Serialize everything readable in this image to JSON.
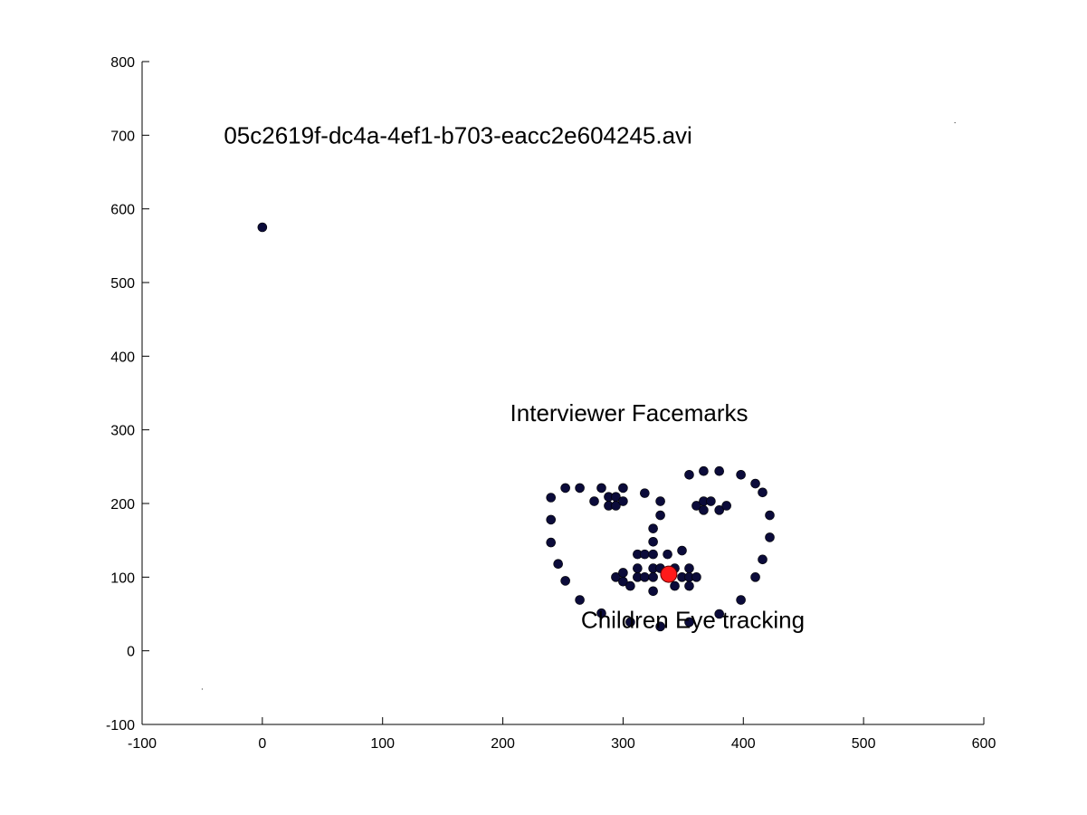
{
  "chart_data": {
    "type": "scatter",
    "title": "",
    "xlabel": "",
    "ylabel": "",
    "xlim": [
      -100,
      600
    ],
    "ylim": [
      -100,
      800
    ],
    "xticks": [
      -100,
      0,
      100,
      200,
      300,
      400,
      500,
      600
    ],
    "yticks": [
      -100,
      0,
      100,
      200,
      300,
      400,
      500,
      600,
      700,
      800
    ],
    "xtick_labels": [
      "-100",
      "0",
      "100",
      "200",
      "300",
      "400",
      "500",
      "600"
    ],
    "ytick_labels": [
      "-100",
      "0",
      "100",
      "200",
      "300",
      "400",
      "500",
      "600",
      "700",
      "800"
    ],
    "grid": false,
    "box": "left-bottom",
    "annotations": {
      "video": {
        "text": "05c2619f-dc4a-4ef1-b703-eacc2e604245.avi",
        "x": -32,
        "y": 700
      },
      "facemarks": {
        "text": "Interviewer Facemarks",
        "x": 206,
        "y": 323
      },
      "eyetracking": {
        "text": "Children Eye tracking",
        "x": 265,
        "y": 42
      }
    },
    "series": [
      {
        "color": "#0b0b3a",
        "points": [
          [
            0,
            575
          ],
          [
            240,
            208
          ],
          [
            240,
            178
          ],
          [
            240,
            147
          ],
          [
            246,
            118
          ],
          [
            252,
            95
          ],
          [
            264,
            69
          ],
          [
            282,
            51
          ],
          [
            306,
            39
          ],
          [
            331,
            33
          ],
          [
            355,
            39
          ],
          [
            380,
            50
          ],
          [
            398,
            69
          ],
          [
            410,
            100
          ],
          [
            416,
            124
          ],
          [
            422,
            154
          ],
          [
            422,
            184
          ],
          [
            416,
            215
          ],
          [
            410,
            227
          ],
          [
            398,
            239
          ],
          [
            380,
            244
          ],
          [
            367,
            244
          ],
          [
            355,
            239
          ],
          [
            252,
            221
          ],
          [
            264,
            221
          ],
          [
            276,
            203
          ],
          [
            282,
            221
          ],
          [
            288,
            209
          ],
          [
            288,
            197
          ],
          [
            294,
            197
          ],
          [
            294,
            209
          ],
          [
            300,
            221
          ],
          [
            300,
            203
          ],
          [
            318,
            214
          ],
          [
            331,
            203
          ],
          [
            331,
            184
          ],
          [
            325,
            166
          ],
          [
            325,
            148
          ],
          [
            337,
            131
          ],
          [
            349,
            136
          ],
          [
            361,
            197
          ],
          [
            367,
            203
          ],
          [
            367,
            191
          ],
          [
            373,
            203
          ],
          [
            380,
            191
          ],
          [
            386,
            197
          ],
          [
            312,
            131
          ],
          [
            312,
            112
          ],
          [
            318,
            131
          ],
          [
            325,
            131
          ],
          [
            325,
            112
          ],
          [
            312,
            100
          ],
          [
            318,
            100
          ],
          [
            325,
            100
          ],
          [
            331,
            112
          ],
          [
            294,
            100
          ],
          [
            300,
            106
          ],
          [
            300,
            94
          ],
          [
            306,
            88
          ],
          [
            325,
            81
          ],
          [
            343,
            88
          ],
          [
            349,
            100
          ],
          [
            343,
            112
          ],
          [
            355,
            112
          ],
          [
            355,
            100
          ],
          [
            355,
            88
          ],
          [
            361,
            100
          ]
        ]
      }
    ],
    "gaze": {
      "color": "#ff1a1a",
      "x": 338,
      "y": 104
    },
    "stray_points": [
      [
        -50,
        -52
      ],
      [
        576,
        717
      ]
    ]
  }
}
